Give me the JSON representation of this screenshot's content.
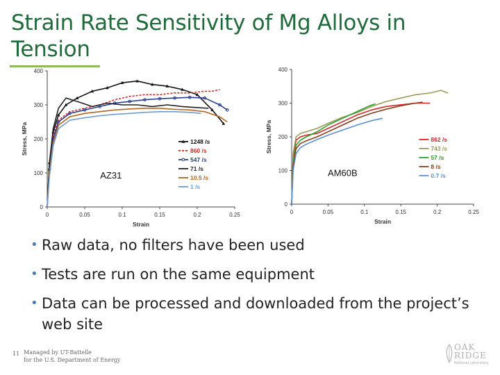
{
  "slide": {
    "title": "Strain Rate Sensitivity of Mg Alloys in Tension",
    "bullets": [
      "Raw data, no filters have been used",
      "Tests are run on the same equipment",
      "Data can be processed and downloaded from the project’s web site"
    ],
    "footer_number": "11",
    "footer_line1": "Managed by UT-Battelle",
    "footer_line2": "for the U.S. Department of Energy",
    "logo_line1": "OAK",
    "logo_line2": "RIDGE",
    "logo_line3": "National Laboratory"
  },
  "chart_data": [
    {
      "type": "line",
      "annotation": "AZ31",
      "xlabel": "Strain",
      "ylabel": "Stress, MPa",
      "xlim": [
        0,
        0.25
      ],
      "ylim": [
        0,
        400
      ],
      "xticks": [
        "0",
        "0.05",
        "0.1",
        "0.15",
        "0.2",
        "0.25"
      ],
      "yticks": [
        "0",
        "100",
        "200",
        "300",
        "400"
      ],
      "legend_position": "bottom-right",
      "grid": false,
      "series": [
        {
          "name": "1248 /s",
          "color": "#111111",
          "marker": "triangle",
          "x": [
            0,
            0.003,
            0.008,
            0.015,
            0.025,
            0.04,
            0.06,
            0.08,
            0.1,
            0.12,
            0.14,
            0.16,
            0.18,
            0.2,
            0.22,
            0.235
          ],
          "y": [
            0,
            130,
            220,
            270,
            300,
            320,
            340,
            350,
            365,
            370,
            360,
            355,
            345,
            330,
            285,
            245
          ]
        },
        {
          "name": "860 /s",
          "color": "#d62728",
          "marker": "dot",
          "x": [
            0,
            0.003,
            0.008,
            0.015,
            0.03,
            0.05,
            0.07,
            0.09,
            0.11,
            0.13,
            0.15,
            0.17,
            0.19,
            0.21,
            0.22,
            0.23
          ],
          "y": [
            0,
            120,
            210,
            255,
            280,
            290,
            300,
            315,
            325,
            330,
            330,
            335,
            335,
            340,
            340,
            345
          ]
        },
        {
          "name": "547 /s",
          "color": "#2a3f8f",
          "marker": "circle",
          "x": [
            0,
            0.003,
            0.008,
            0.015,
            0.03,
            0.05,
            0.07,
            0.09,
            0.11,
            0.13,
            0.15,
            0.17,
            0.19,
            0.21,
            0.23,
            0.24
          ],
          "y": [
            0,
            110,
            200,
            250,
            275,
            285,
            295,
            305,
            310,
            315,
            318,
            320,
            322,
            320,
            300,
            285
          ]
        },
        {
          "name": "71 /s",
          "color": "#222222",
          "marker": "line",
          "x": [
            0,
            0.003,
            0.008,
            0.015,
            0.025,
            0.04,
            0.06,
            0.08,
            0.1,
            0.12,
            0.14,
            0.16,
            0.18,
            0.2,
            0.215
          ],
          "y": [
            0,
            130,
            230,
            290,
            320,
            310,
            295,
            305,
            300,
            300,
            295,
            300,
            295,
            292,
            290
          ]
        },
        {
          "name": "10.5 /s",
          "color": "#b5651d",
          "marker": "line",
          "x": [
            0,
            0.003,
            0.008,
            0.015,
            0.03,
            0.05,
            0.07,
            0.09,
            0.11,
            0.13,
            0.15,
            0.17,
            0.19,
            0.21,
            0.23,
            0.24
          ],
          "y": [
            0,
            100,
            190,
            240,
            265,
            275,
            280,
            285,
            288,
            290,
            290,
            287,
            285,
            280,
            265,
            250
          ]
        },
        {
          "name": "1 /s",
          "color": "#6f9bd4",
          "marker": "line",
          "x": [
            0,
            0.003,
            0.008,
            0.015,
            0.03,
            0.05,
            0.07,
            0.09,
            0.11,
            0.13,
            0.15,
            0.17,
            0.19,
            0.205
          ],
          "y": [
            0,
            90,
            180,
            230,
            255,
            262,
            268,
            272,
            275,
            278,
            280,
            280,
            278,
            275
          ]
        }
      ]
    },
    {
      "type": "line",
      "annotation": "AM60B",
      "xlabel": "Strain",
      "ylabel": "Stress, MPa",
      "xlim": [
        0,
        0.25
      ],
      "ylim": [
        0,
        400
      ],
      "xticks": [
        "0",
        "0.05",
        "0.1",
        "0.15",
        "0.2",
        "0.25"
      ],
      "yticks": [
        "0",
        "100",
        "200",
        "300",
        "400"
      ],
      "legend_position": "bottom-right",
      "grid": false,
      "series": [
        {
          "name": "862 /s",
          "color": "#d62728",
          "marker": "line",
          "x": [
            0,
            0.002,
            0.006,
            0.012,
            0.02,
            0.035,
            0.05,
            0.07,
            0.09,
            0.11,
            0.13,
            0.15,
            0.17,
            0.19
          ],
          "y": [
            0,
            140,
            190,
            200,
            205,
            210,
            225,
            245,
            265,
            280,
            290,
            295,
            300,
            300
          ]
        },
        {
          "name": "743 /s",
          "color": "#9a9a5a",
          "marker": "line",
          "x": [
            0,
            0.002,
            0.006,
            0.012,
            0.02,
            0.035,
            0.05,
            0.07,
            0.09,
            0.11,
            0.13,
            0.15,
            0.17,
            0.19,
            0.205,
            0.215
          ],
          "y": [
            0,
            150,
            200,
            210,
            215,
            225,
            240,
            258,
            272,
            290,
            305,
            315,
            325,
            330,
            338,
            330
          ]
        },
        {
          "name": "57 /s",
          "color": "#2ca02c",
          "marker": "line",
          "x": [
            0,
            0.002,
            0.006,
            0.012,
            0.02,
            0.035,
            0.05,
            0.07,
            0.09,
            0.105,
            0.115
          ],
          "y": [
            0,
            120,
            175,
            190,
            200,
            215,
            235,
            255,
            275,
            290,
            298
          ]
        },
        {
          "name": "8 /s",
          "color": "#8b3a1a",
          "marker": "line",
          "x": [
            0,
            0.002,
            0.006,
            0.012,
            0.02,
            0.035,
            0.05,
            0.07,
            0.09,
            0.11,
            0.13,
            0.15,
            0.17,
            0.18
          ],
          "y": [
            0,
            110,
            165,
            180,
            188,
            200,
            215,
            235,
            255,
            270,
            282,
            292,
            300,
            303
          ]
        },
        {
          "name": "0.7 /s",
          "color": "#5b8fd6",
          "marker": "line",
          "x": [
            0,
            0.002,
            0.006,
            0.012,
            0.02,
            0.035,
            0.05,
            0.07,
            0.09,
            0.11,
            0.125
          ],
          "y": [
            0,
            100,
            150,
            168,
            178,
            192,
            205,
            220,
            235,
            248,
            255
          ]
        }
      ]
    }
  ]
}
